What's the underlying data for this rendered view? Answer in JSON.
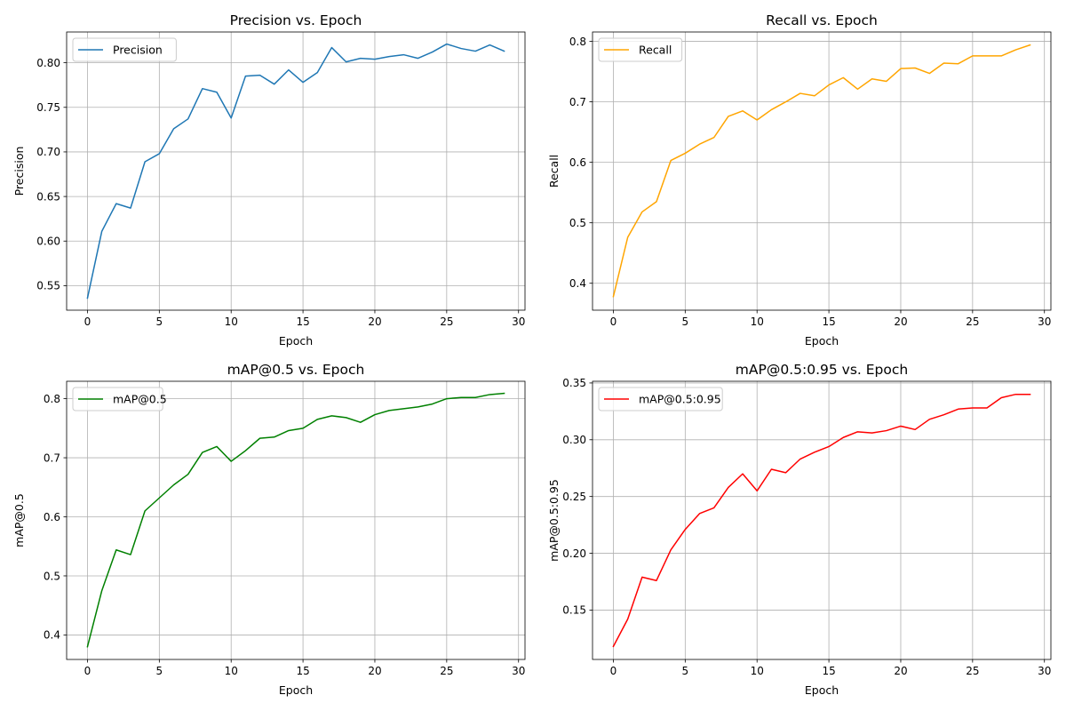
{
  "chart_data": [
    {
      "type": "line",
      "title": "Precision vs. Epoch",
      "xlabel": "Epoch",
      "ylabel": "Precision",
      "xlim": [
        -1.45,
        30.45
      ],
      "ylim": [
        0.5225,
        0.8345
      ],
      "xticks": [
        0,
        5,
        10,
        15,
        20,
        25,
        30
      ],
      "yticks": [
        0.55,
        0.6,
        0.65,
        0.7,
        0.75,
        0.8
      ],
      "ytick_labels": [
        "0.55",
        "0.60",
        "0.65",
        "0.70",
        "0.75",
        "0.80"
      ],
      "grid": true,
      "legend": "upper left",
      "x": [
        0,
        1,
        2,
        3,
        4,
        5,
        6,
        7,
        8,
        9,
        10,
        11,
        12,
        13,
        14,
        15,
        16,
        17,
        18,
        19,
        20,
        21,
        22,
        23,
        24,
        25,
        26,
        27,
        28,
        29
      ],
      "series": [
        {
          "name": "Precision",
          "color": "#1f77b4",
          "values": [
            0.536,
            0.611,
            0.642,
            0.637,
            0.689,
            0.698,
            0.726,
            0.737,
            0.771,
            0.767,
            0.738,
            0.785,
            0.786,
            0.776,
            0.792,
            0.778,
            0.789,
            0.817,
            0.801,
            0.805,
            0.804,
            0.807,
            0.809,
            0.805,
            0.812,
            0.821,
            0.816,
            0.813,
            0.82,
            0.813
          ]
        }
      ]
    },
    {
      "type": "line",
      "title": "Recall vs. Epoch",
      "xlabel": "Epoch",
      "ylabel": "Recall",
      "xlim": [
        -1.45,
        30.45
      ],
      "ylim": [
        0.3555,
        0.8155
      ],
      "xticks": [
        0,
        5,
        10,
        15,
        20,
        25,
        30
      ],
      "yticks": [
        0.4,
        0.5,
        0.6,
        0.7,
        0.8
      ],
      "ytick_labels": [
        "0.4",
        "0.5",
        "0.6",
        "0.7",
        "0.8"
      ],
      "grid": true,
      "legend": "upper left",
      "x": [
        0,
        1,
        2,
        3,
        4,
        5,
        6,
        7,
        8,
        9,
        10,
        11,
        12,
        13,
        14,
        15,
        16,
        17,
        18,
        19,
        20,
        21,
        22,
        23,
        24,
        25,
        26,
        27,
        28,
        29
      ],
      "series": [
        {
          "name": "Recall",
          "color": "#ffa500",
          "values": [
            0.378,
            0.476,
            0.518,
            0.535,
            0.603,
            0.615,
            0.63,
            0.641,
            0.676,
            0.685,
            0.67,
            0.687,
            0.7,
            0.714,
            0.71,
            0.728,
            0.74,
            0.721,
            0.738,
            0.734,
            0.755,
            0.756,
            0.747,
            0.764,
            0.763,
            0.776,
            0.776,
            0.776,
            0.786,
            0.794
          ]
        }
      ]
    },
    {
      "type": "line",
      "title": "mAP@0.5 vs. Epoch",
      "xlabel": "Epoch",
      "ylabel": "mAP@0.5",
      "xlim": [
        -1.45,
        30.45
      ],
      "ylim": [
        0.3585,
        0.8295
      ],
      "xticks": [
        0,
        5,
        10,
        15,
        20,
        25,
        30
      ],
      "yticks": [
        0.4,
        0.5,
        0.6,
        0.7,
        0.8
      ],
      "ytick_labels": [
        "0.4",
        "0.5",
        "0.6",
        "0.7",
        "0.8"
      ],
      "grid": true,
      "legend": "upper left",
      "x": [
        0,
        1,
        2,
        3,
        4,
        5,
        6,
        7,
        8,
        9,
        10,
        11,
        12,
        13,
        14,
        15,
        16,
        17,
        18,
        19,
        20,
        21,
        22,
        23,
        24,
        25,
        26,
        27,
        28,
        29
      ],
      "series": [
        {
          "name": "mAP@0.5",
          "color": "#008000",
          "values": [
            0.38,
            0.475,
            0.544,
            0.536,
            0.61,
            0.632,
            0.654,
            0.672,
            0.709,
            0.719,
            0.694,
            0.712,
            0.733,
            0.735,
            0.746,
            0.75,
            0.765,
            0.771,
            0.768,
            0.76,
            0.773,
            0.78,
            0.783,
            0.786,
            0.791,
            0.8,
            0.802,
            0.802,
            0.807,
            0.809
          ]
        }
      ]
    },
    {
      "type": "line",
      "title": "mAP@0.5:0.95 vs. Epoch",
      "xlabel": "Epoch",
      "ylabel": "mAP@0.5:0.95",
      "xlim": [
        -1.45,
        30.45
      ],
      "ylim": [
        0.1065,
        0.3515
      ],
      "xticks": [
        0,
        5,
        10,
        15,
        20,
        25,
        30
      ],
      "yticks": [
        0.15,
        0.2,
        0.25,
        0.3,
        0.35
      ],
      "ytick_labels": [
        "0.15",
        "0.20",
        "0.25",
        "0.30",
        "0.35"
      ],
      "grid": true,
      "legend": "upper left",
      "x": [
        0,
        1,
        2,
        3,
        4,
        5,
        6,
        7,
        8,
        9,
        10,
        11,
        12,
        13,
        14,
        15,
        16,
        17,
        18,
        19,
        20,
        21,
        22,
        23,
        24,
        25,
        26,
        27,
        28,
        29
      ],
      "series": [
        {
          "name": "mAP@0.5:0.95",
          "color": "#ff0000",
          "values": [
            0.118,
            0.142,
            0.179,
            0.176,
            0.203,
            0.221,
            0.235,
            0.24,
            0.258,
            0.27,
            0.255,
            0.274,
            0.271,
            0.283,
            0.289,
            0.294,
            0.302,
            0.307,
            0.306,
            0.308,
            0.312,
            0.309,
            0.318,
            0.322,
            0.327,
            0.328,
            0.328,
            0.337,
            0.34,
            0.34
          ]
        }
      ]
    }
  ]
}
